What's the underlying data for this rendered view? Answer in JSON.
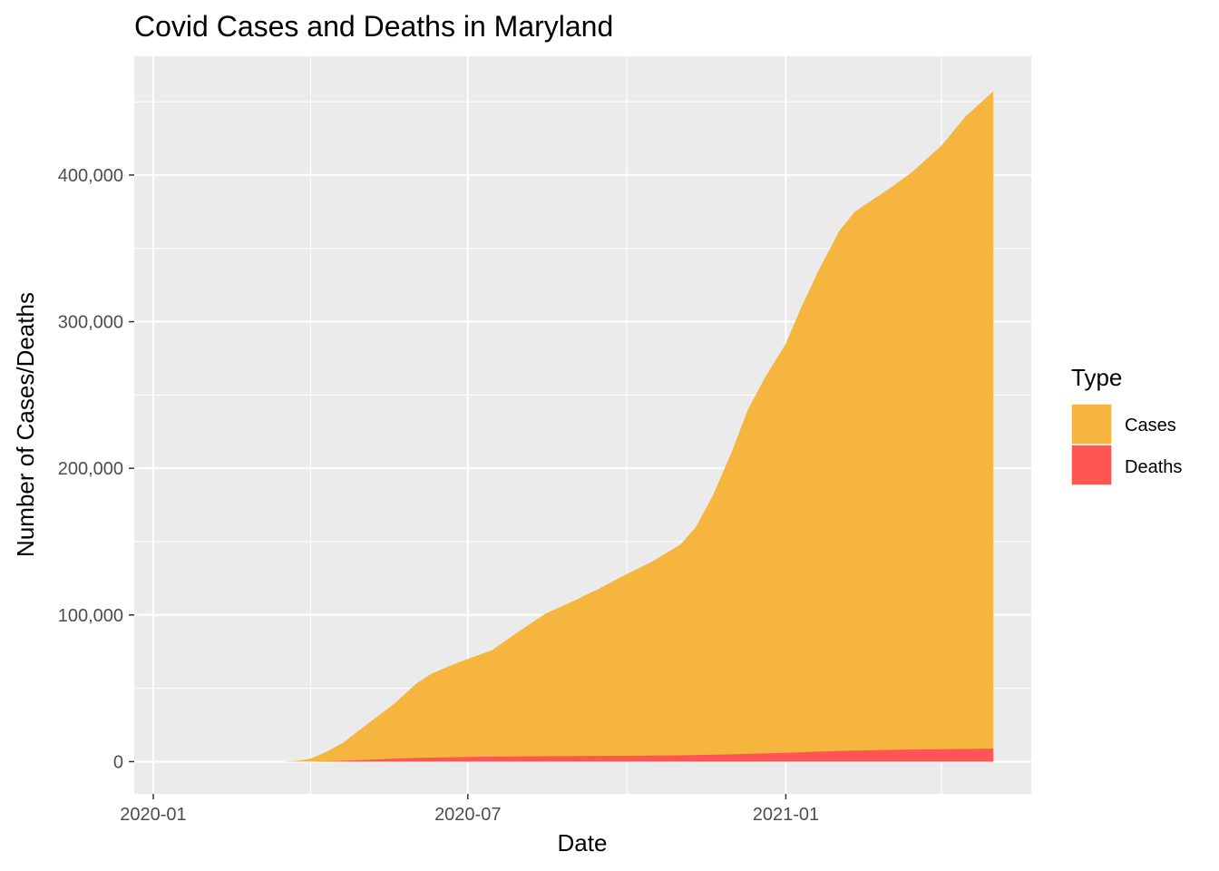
{
  "chart_data": {
    "type": "area",
    "title": "Covid Cases and Deaths in Maryland",
    "xlabel": "Date",
    "ylabel": "Number of Cases/Deaths",
    "x_ticks": [
      "2020-01",
      "2020-07",
      "2021-01"
    ],
    "x_minor_ticks": [
      "2020-04",
      "2020-10",
      "2021-04"
    ],
    "y_ticks": [
      "0",
      "100,000",
      "200,000",
      "300,000",
      "400,000"
    ],
    "xlim": [
      "2019-12-21",
      "2021-05-23"
    ],
    "ylim": [
      -22000,
      481000
    ],
    "grid": true,
    "legend": {
      "title": "Type",
      "position": "right",
      "entries": [
        {
          "label": "Cases",
          "color": "#F5B53F"
        },
        {
          "label": "Deaths",
          "color": "#FF5555"
        }
      ]
    },
    "series": [
      {
        "name": "Cases",
        "color": "#F5B53F",
        "points": [
          [
            "2020-03-05",
            0
          ],
          [
            "2020-03-15",
            40
          ],
          [
            "2020-03-25",
            600
          ],
          [
            "2020-04-01",
            2000
          ],
          [
            "2020-04-10",
            6500
          ],
          [
            "2020-04-20",
            13000
          ],
          [
            "2020-05-01",
            23000
          ],
          [
            "2020-05-10",
            31000
          ],
          [
            "2020-05-20",
            40000
          ],
          [
            "2020-06-01",
            53000
          ],
          [
            "2020-06-10",
            60000
          ],
          [
            "2020-06-20",
            65000
          ],
          [
            "2020-07-01",
            70000
          ],
          [
            "2020-07-15",
            76000
          ],
          [
            "2020-08-01",
            90000
          ],
          [
            "2020-08-15",
            101000
          ],
          [
            "2020-09-01",
            110000
          ],
          [
            "2020-09-15",
            118000
          ],
          [
            "2020-10-01",
            128000
          ],
          [
            "2020-10-15",
            136000
          ],
          [
            "2020-11-01",
            148000
          ],
          [
            "2020-11-10",
            160000
          ],
          [
            "2020-11-20",
            182000
          ],
          [
            "2020-12-01",
            212000
          ],
          [
            "2020-12-10",
            240000
          ],
          [
            "2020-12-20",
            262000
          ],
          [
            "2021-01-01",
            285000
          ],
          [
            "2021-01-10",
            310000
          ],
          [
            "2021-01-20",
            335000
          ],
          [
            "2021-02-01",
            362000
          ],
          [
            "2021-02-10",
            375000
          ],
          [
            "2021-02-20",
            383000
          ],
          [
            "2021-03-01",
            390000
          ],
          [
            "2021-03-15",
            402000
          ],
          [
            "2021-04-01",
            420000
          ],
          [
            "2021-04-15",
            440000
          ],
          [
            "2021-05-01",
            457000
          ]
        ]
      },
      {
        "name": "Deaths",
        "color": "#FF5555",
        "points": [
          [
            "2020-03-05",
            0
          ],
          [
            "2020-03-25",
            10
          ],
          [
            "2020-04-01",
            50
          ],
          [
            "2020-04-15",
            400
          ],
          [
            "2020-05-01",
            1100
          ],
          [
            "2020-05-15",
            1800
          ],
          [
            "2020-06-01",
            2500
          ],
          [
            "2020-07-01",
            3200
          ],
          [
            "2020-08-01",
            3600
          ],
          [
            "2020-09-01",
            3800
          ],
          [
            "2020-10-01",
            4000
          ],
          [
            "2020-11-01",
            4300
          ],
          [
            "2020-12-01",
            5000
          ],
          [
            "2021-01-01",
            6000
          ],
          [
            "2021-02-01",
            7300
          ],
          [
            "2021-03-01",
            8000
          ],
          [
            "2021-04-01",
            8500
          ],
          [
            "2021-05-01",
            8900
          ]
        ]
      }
    ]
  }
}
